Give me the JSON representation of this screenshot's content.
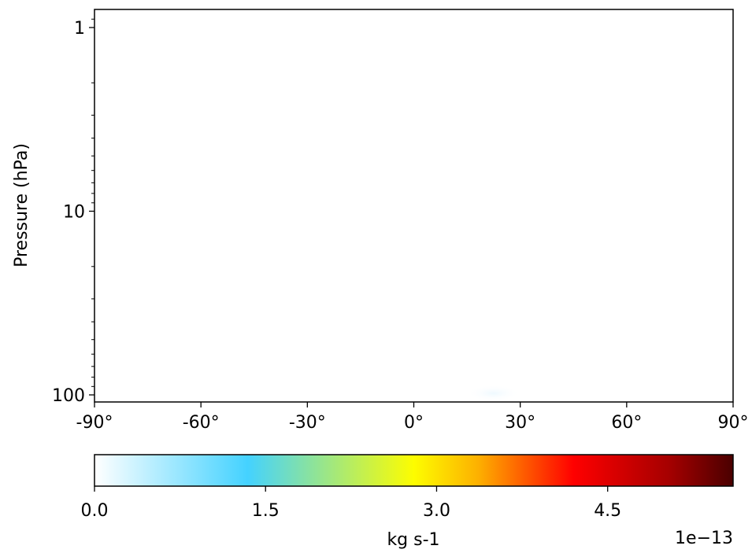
{
  "chart_data": {
    "type": "heatmap",
    "title": "",
    "xlabel": "",
    "ylabel": "Pressure (hPa)",
    "xlim": [
      -90,
      90
    ],
    "ylim": [
      1,
      100
    ],
    "yscale": "log",
    "yinverted": true,
    "xticks": [
      {
        "value": -90,
        "label": "-90°"
      },
      {
        "value": -60,
        "label": "-60°"
      },
      {
        "value": -30,
        "label": "-30°"
      },
      {
        "value": 0,
        "label": "0°"
      },
      {
        "value": 30,
        "label": "30°"
      },
      {
        "value": 60,
        "label": "60°"
      },
      {
        "value": 90,
        "label": "90°"
      }
    ],
    "yticks": [
      {
        "value": 1,
        "label": "1"
      },
      {
        "value": 10,
        "label": "10"
      },
      {
        "value": 100,
        "label": "100"
      }
    ],
    "field_features": [
      {
        "lat_range": [
          15,
          30
        ],
        "pressure_range": [
          90,
          100
        ],
        "value": 5e-15
      }
    ],
    "colorbar": {
      "label": "kg s-1",
      "orientation": "horizontal",
      "range": [
        0,
        5.6e-13
      ],
      "ticks": [
        {
          "value": 0,
          "label": "0.0"
        },
        {
          "value": 1.5e-13,
          "label": "1.5"
        },
        {
          "value": 3e-13,
          "label": "3.0"
        },
        {
          "value": 4.5e-13,
          "label": "4.5"
        }
      ],
      "offset_text": "1e−13",
      "colormap": [
        {
          "pos": 0.0,
          "color": "#ffffff"
        },
        {
          "pos": 0.24,
          "color": "#44d2ff"
        },
        {
          "pos": 0.5,
          "color": "#fdfd00"
        },
        {
          "pos": 0.6,
          "color": "#fdb100"
        },
        {
          "pos": 0.75,
          "color": "#ff0000"
        },
        {
          "pos": 0.9,
          "color": "#a50000"
        },
        {
          "pos": 1.0,
          "color": "#4a0000"
        }
      ]
    }
  }
}
